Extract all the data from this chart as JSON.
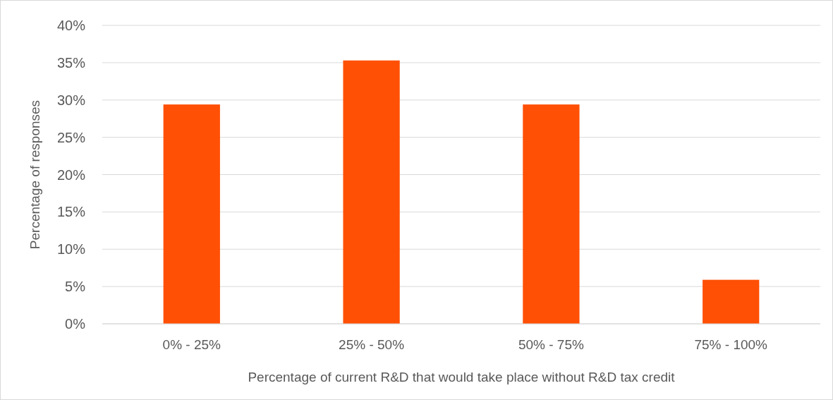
{
  "chart_data": {
    "type": "bar",
    "xlabel": "Percentage of current R&D that would take place without R&D tax credit",
    "ylabel": "Percentage of responses",
    "categories": [
      "0% - 25%",
      "25% - 50%",
      "50% - 75%",
      "75% - 100%"
    ],
    "values": [
      29.4,
      35.3,
      29.4,
      5.9
    ],
    "color": "#ff5005",
    "ylim": [
      0,
      40
    ],
    "yticks": [
      {
        "value": 0,
        "label": "0%"
      },
      {
        "value": 5,
        "label": "5%"
      },
      {
        "value": 10,
        "label": "10%"
      },
      {
        "value": 15,
        "label": "15%"
      },
      {
        "value": 20,
        "label": "20%"
      },
      {
        "value": 25,
        "label": "25%"
      },
      {
        "value": 30,
        "label": "30%"
      },
      {
        "value": 35,
        "label": "35%"
      },
      {
        "value": 40,
        "label": "40%"
      }
    ],
    "grid": "y"
  }
}
